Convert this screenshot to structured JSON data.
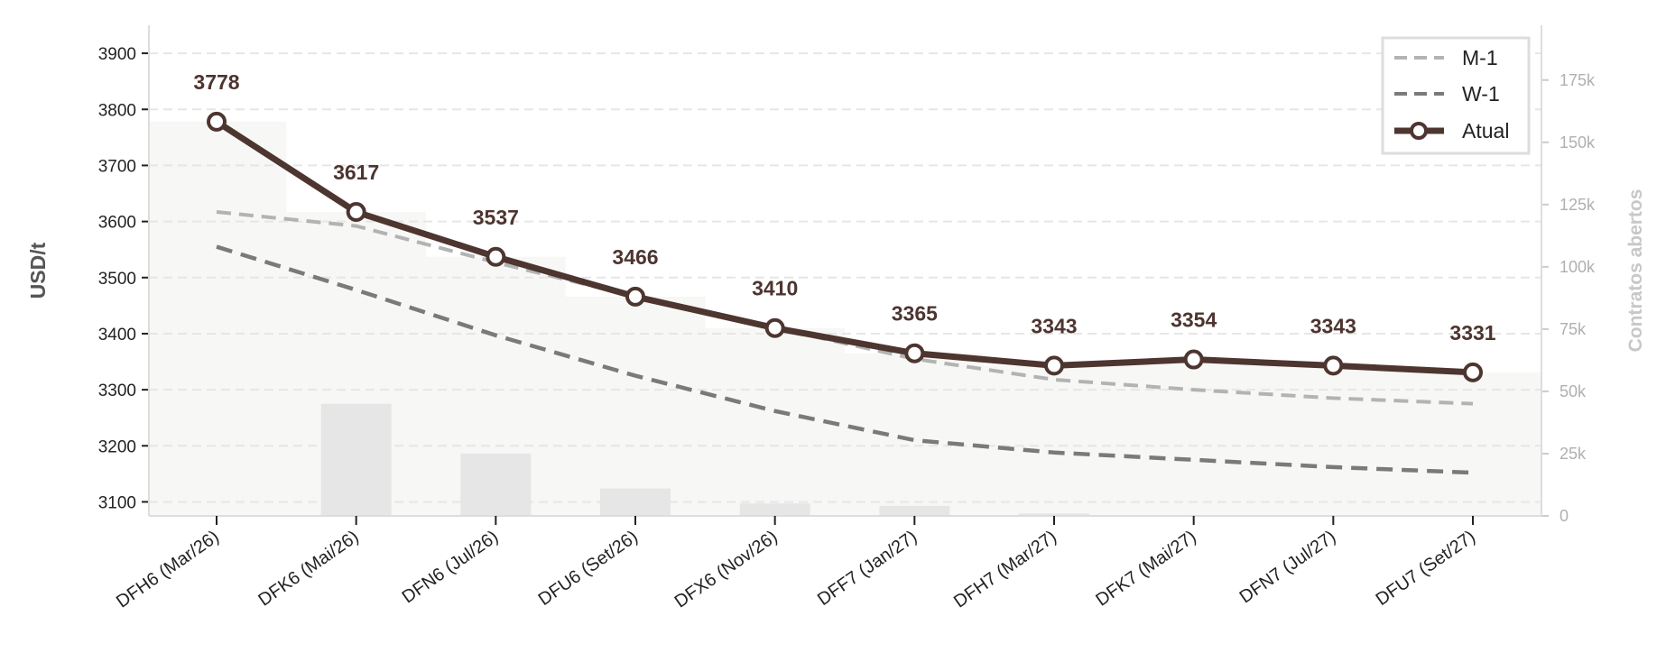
{
  "chart_data": {
    "type": "line",
    "categories": [
      "DFH6 (Mar/26)",
      "DFK6 (Mai/26)",
      "DFN6 (Jul/26)",
      "DFU6 (Set/26)",
      "DFX6 (Nov/26)",
      "DFF7 (Jan/27)",
      "DFH7 (Mar/27)",
      "DFK7 (Mai/27)",
      "DFN7 (Jul/27)",
      "DFU7 (Set/27)"
    ],
    "series": [
      {
        "name": "M-1",
        "style": "dashed",
        "color": "#b3b3b3",
        "values": [
          3617,
          3592,
          3527,
          3466,
          3410,
          3355,
          3318,
          3300,
          3285,
          3275
        ]
      },
      {
        "name": "W-1",
        "style": "dashed",
        "color": "#7a7a7a",
        "values": [
          3555,
          3478,
          3397,
          3325,
          3262,
          3210,
          3188,
          3175,
          3162,
          3152
        ]
      },
      {
        "name": "Atual",
        "style": "solid-markers",
        "color": "#4d3530",
        "values": [
          3778,
          3617,
          3537,
          3466,
          3410,
          3365,
          3343,
          3354,
          3343,
          3331
        ]
      }
    ],
    "data_labels": [
      "3778",
      "3617",
      "3537",
      "3466",
      "3410",
      "3365",
      "3343",
      "3354",
      "3343",
      "3331"
    ],
    "open_interest": [
      0,
      45000,
      25000,
      11000,
      5000,
      4000,
      1000,
      0,
      0,
      0
    ],
    "ylabel": "USD/t",
    "ylim": [
      3075,
      3950
    ],
    "yticks": [
      "3100",
      "3200",
      "3300",
      "3400",
      "3500",
      "3600",
      "3700",
      "3800",
      "3900"
    ],
    "y2label": "Contratos abertos",
    "y2lim": [
      0,
      197000
    ],
    "y2ticks": [
      "0",
      "25k",
      "50k",
      "75k",
      "100k",
      "125k",
      "150k",
      "175k"
    ],
    "grid": "horizontal dashed",
    "legend_position": "top-right",
    "colors": {
      "accent": "#4d3530",
      "bars": "#e6e6e6",
      "area": "#f7f7f5",
      "grid": "#e6e6e6",
      "right_axis": "#b0b0b0",
      "ylabel": "#555555"
    }
  }
}
